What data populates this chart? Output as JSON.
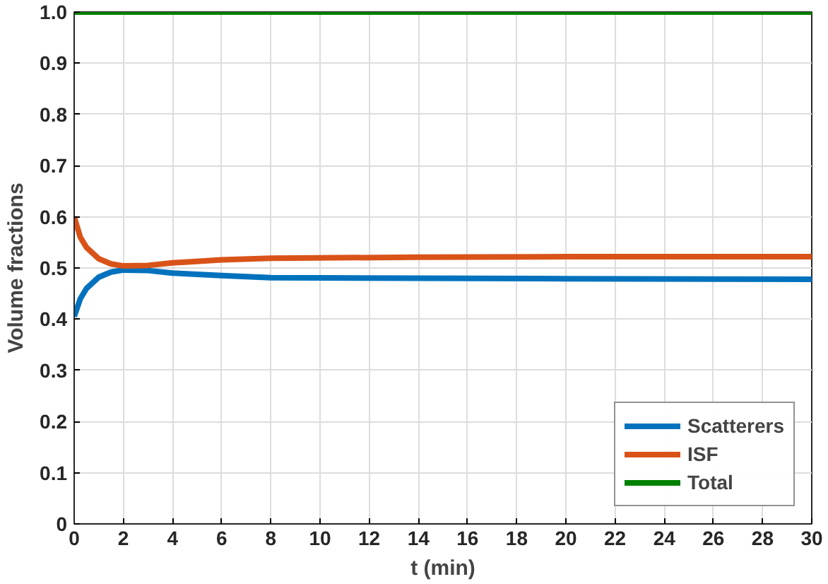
{
  "chart_data": {
    "type": "line",
    "xlabel": "t (min)",
    "ylabel": "Volume fractions",
    "x": [
      0,
      0.25,
      0.5,
      1,
      1.5,
      2,
      3,
      4,
      6,
      8,
      14,
      20,
      30
    ],
    "series": [
      {
        "name": "Scatterers",
        "color": "#0072bd",
        "values": [
          0.405,
          0.44,
          0.46,
          0.482,
          0.492,
          0.496,
          0.495,
          0.49,
          0.485,
          0.481,
          0.48,
          0.479,
          0.478
        ]
      },
      {
        "name": "ISF",
        "color": "#d95319",
        "values": [
          0.6,
          0.56,
          0.54,
          0.518,
          0.508,
          0.504,
          0.505,
          0.51,
          0.516,
          0.519,
          0.521,
          0.522,
          0.522
        ]
      },
      {
        "name": "Total",
        "color": "#008000",
        "values": [
          1,
          1,
          1,
          1,
          1,
          1,
          1,
          1,
          1,
          1,
          1,
          1,
          1
        ]
      }
    ],
    "xlim": [
      0,
      30
    ],
    "xticks": [
      0,
      2,
      4,
      6,
      8,
      10,
      12,
      14,
      16,
      18,
      20,
      22,
      24,
      26,
      28,
      30
    ],
    "ylim": [
      0,
      1
    ],
    "yticks": [
      0,
      {
        "value": 0.1,
        "label": "0.1"
      },
      {
        "value": 0.2,
        "label": "0.2"
      },
      {
        "value": 0.3,
        "label": "0.3"
      },
      {
        "value": 0.4,
        "label": "0.4"
      },
      {
        "value": 0.5,
        "label": "0.5"
      },
      {
        "value": 0.6,
        "label": "0.6"
      },
      {
        "value": 0.7,
        "label": "0.7"
      },
      {
        "value": 0.8,
        "label": "0.8"
      },
      {
        "value": 0.9,
        "label": "0.9"
      },
      {
        "value": 1,
        "label": "1.0"
      }
    ],
    "grid": true,
    "legend": "bottom right",
    "line_style": "solid"
  }
}
